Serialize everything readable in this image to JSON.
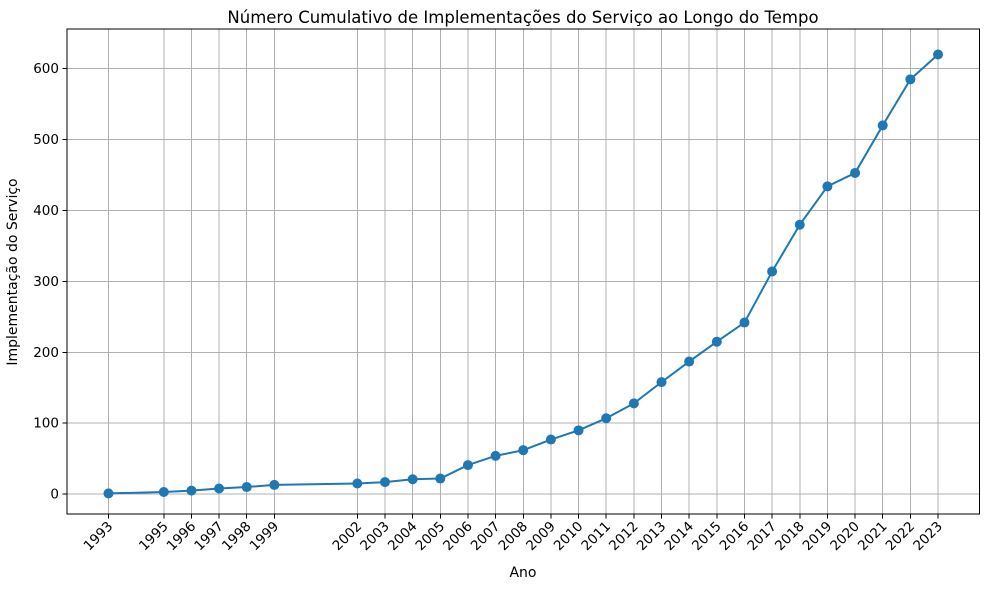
{
  "chart_data": {
    "type": "line",
    "title": "Número Cumulativo de Implementações do Serviço ao Longo do Tempo",
    "xlabel": "Ano",
    "ylabel": "Implementação do Serviço",
    "x": [
      1993,
      1995,
      1996,
      1997,
      1998,
      1999,
      2002,
      2003,
      2004,
      2005,
      2006,
      2007,
      2008,
      2009,
      2010,
      2011,
      2012,
      2013,
      2014,
      2015,
      2016,
      2017,
      2018,
      2019,
      2020,
      2021,
      2022,
      2023
    ],
    "y": [
      1,
      3,
      5,
      8,
      10,
      13,
      15,
      17,
      21,
      22,
      41,
      54,
      62,
      77,
      90,
      107,
      128,
      158,
      187,
      215,
      242,
      314,
      380,
      434,
      453,
      520,
      585,
      620
    ],
    "xtick_labels": [
      "1993",
      "1995",
      "1996",
      "1997",
      "1998",
      "1999",
      "2002",
      "2003",
      "2004",
      "2005",
      "2006",
      "2007",
      "2008",
      "2009",
      "2010",
      "2011",
      "2012",
      "2013",
      "2014",
      "2015",
      "2016",
      "2017",
      "2018",
      "2019",
      "2020",
      "2021",
      "2022",
      "2023"
    ],
    "yticks": [
      0,
      100,
      200,
      300,
      400,
      500,
      600
    ],
    "xlim": [
      1991.5,
      2024.5
    ],
    "ylim": [
      -28,
      656
    ],
    "grid": true,
    "legend": false,
    "line_color": "#1f77b4",
    "marker": "o",
    "grid_color": "#b0b0b0",
    "axis_color": "#000000",
    "background_color": "#ffffff"
  }
}
